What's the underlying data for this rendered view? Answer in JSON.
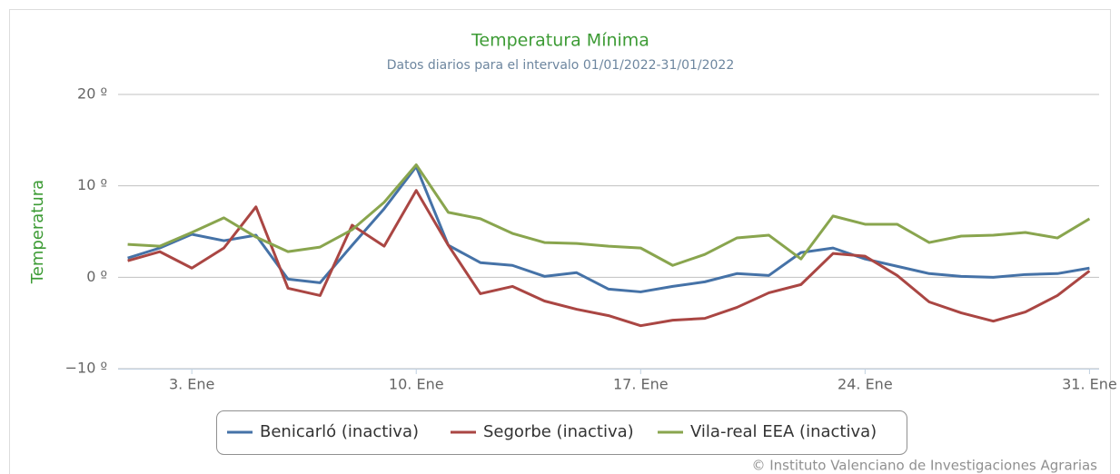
{
  "chart_data": {
    "type": "line",
    "title": "Temperatura Mínima",
    "subtitle": "Datos diarios para el intervalo 01/01/2022-31/01/2022",
    "y_label": "Temperatura",
    "credit": "© Instituto Valenciano de Investigaciones Agrarias",
    "x": [
      1,
      2,
      3,
      4,
      5,
      6,
      7,
      8,
      9,
      10,
      11,
      12,
      13,
      14,
      15,
      16,
      17,
      18,
      19,
      20,
      21,
      22,
      23,
      24,
      25,
      26,
      27,
      28,
      29,
      30,
      31
    ],
    "xlim": [
      0.7,
      31.3
    ],
    "xticks": [
      {
        "value": 3,
        "label": "3. Ene"
      },
      {
        "value": 10,
        "label": "10. Ene"
      },
      {
        "value": 17,
        "label": "17. Ene"
      },
      {
        "value": 24,
        "label": "24. Ene"
      },
      {
        "value": 31,
        "label": "31. Ene"
      }
    ],
    "ylim": [
      -10,
      20
    ],
    "yticks": [
      {
        "value": -10,
        "label": "−10 º"
      },
      {
        "value": 0,
        "label": "0 º"
      },
      {
        "value": 10,
        "label": "10 º"
      },
      {
        "value": 20,
        "label": "20 º"
      }
    ],
    "grid": true,
    "legend": "bottom",
    "series": [
      {
        "name": "Benicarló (inactiva)",
        "color": "#4572a7",
        "values": [
          2.1,
          3.2,
          4.7,
          4.0,
          4.6,
          -0.2,
          -0.6,
          3.5,
          7.5,
          12.1,
          3.5,
          1.6,
          1.3,
          0.1,
          0.5,
          -1.3,
          -1.6,
          -1.0,
          -0.5,
          0.4,
          0.2,
          2.7,
          3.2,
          2.0,
          1.2,
          0.4,
          0.1,
          0.0,
          0.3,
          0.4,
          1.0
        ]
      },
      {
        "name": "Segorbe (inactiva)",
        "color": "#aa4643",
        "values": [
          1.8,
          2.8,
          1.0,
          3.2,
          7.7,
          -1.2,
          -2.0,
          5.7,
          3.4,
          9.5,
          3.5,
          -1.8,
          -1.0,
          -2.6,
          -3.5,
          -4.2,
          -5.3,
          -4.7,
          -4.5,
          -3.3,
          -1.7,
          -0.8,
          2.6,
          2.3,
          0.2,
          -2.7,
          -3.9,
          -4.8,
          -3.8,
          -2.0,
          0.7
        ]
      },
      {
        "name": "Vila-real EEA (inactiva)",
        "color": "#89a54e",
        "values": [
          3.6,
          3.4,
          4.9,
          6.5,
          4.4,
          2.8,
          3.3,
          5.2,
          8.2,
          12.3,
          7.1,
          6.4,
          4.8,
          3.8,
          3.7,
          3.4,
          3.2,
          1.3,
          2.5,
          4.3,
          4.6,
          2.0,
          6.7,
          5.8,
          5.8,
          3.8,
          4.5,
          4.6,
          4.9,
          4.3,
          6.4
        ]
      }
    ]
  }
}
